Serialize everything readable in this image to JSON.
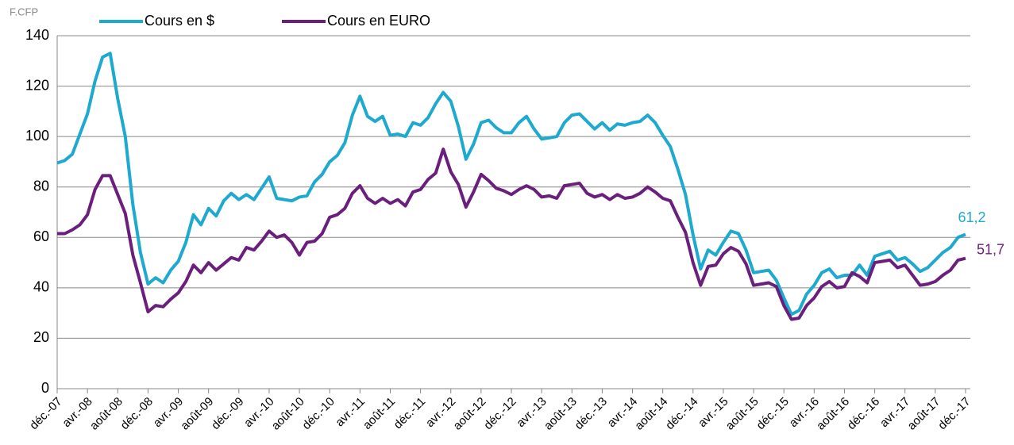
{
  "chart_data": {
    "type": "line",
    "unit_label": "F.CFP",
    "categories": [
      "déc.-07",
      null,
      null,
      null,
      "avr.-08",
      null,
      null,
      null,
      "août-08",
      null,
      null,
      null,
      "déc.-08",
      null,
      null,
      null,
      "avr.-09",
      null,
      null,
      null,
      "août-09",
      null,
      null,
      null,
      "déc.-09",
      null,
      null,
      null,
      "avr.-10",
      null,
      null,
      null,
      "août-10",
      null,
      null,
      null,
      "déc.-10",
      null,
      null,
      null,
      "avr.-11",
      null,
      null,
      null,
      "août-11",
      null,
      null,
      null,
      "déc.-11",
      null,
      null,
      null,
      "avr.-12",
      null,
      null,
      null,
      "août-12",
      null,
      null,
      null,
      "déc.-12",
      null,
      null,
      null,
      "avr.-13",
      null,
      null,
      null,
      "août-13",
      null,
      null,
      null,
      "déc.-13",
      null,
      null,
      null,
      "avr.-14",
      null,
      null,
      null,
      "août-14",
      null,
      null,
      null,
      "déc.-14",
      null,
      null,
      null,
      "avr.-15",
      null,
      null,
      null,
      "août-15",
      null,
      null,
      null,
      "déc.-15",
      null,
      null,
      null,
      "avr.-16",
      null,
      null,
      null,
      "août-16",
      null,
      null,
      null,
      "déc.-16",
      null,
      null,
      null,
      "avr.-17",
      null,
      null,
      null,
      "août-17",
      null,
      null,
      null,
      "déc.-17"
    ],
    "series": [
      {
        "name": "Cours en $",
        "color": "#1ea9cf",
        "values": [
          89.5,
          90.5,
          93,
          101,
          109,
          122,
          131.5,
          133,
          115,
          100,
          73,
          54,
          41.5,
          44,
          42,
          47,
          50.5,
          58,
          69,
          65,
          71.5,
          68.5,
          74.5,
          77.5,
          75,
          77,
          75,
          79.5,
          84,
          75.5,
          75,
          74.5,
          76,
          76.5,
          82,
          85,
          90,
          92.5,
          97.5,
          108.5,
          116,
          108,
          106,
          108,
          100.5,
          101,
          100,
          105.5,
          104.5,
          107.5,
          113,
          117.5,
          114,
          104,
          91,
          97,
          105.5,
          106.5,
          103.5,
          101.5,
          101.5,
          105.5,
          108,
          103,
          99,
          99.5,
          100,
          105.5,
          108.5,
          109,
          106,
          103,
          105.5,
          102.5,
          105,
          104.5,
          105.5,
          106,
          108.5,
          105.5,
          100.5,
          96,
          87,
          77,
          61,
          47.5,
          55,
          53,
          58,
          62.5,
          61.5,
          55,
          46,
          46.5,
          47,
          43,
          36,
          29.5,
          31,
          37.5,
          41,
          46,
          47.5,
          44,
          45,
          45,
          49,
          45,
          52.5,
          53.5,
          54.5,
          51,
          52,
          49.5,
          46.5,
          48,
          51,
          54,
          56,
          60,
          61.2
        ],
        "value_labels": [
          null,
          null,
          null,
          null,
          null,
          null,
          null,
          null,
          null,
          null,
          null,
          null,
          null,
          null,
          null,
          null,
          null,
          null,
          null,
          null,
          null,
          null,
          null,
          null,
          null,
          null,
          null,
          null,
          null,
          null,
          null,
          null,
          null,
          null,
          null,
          null,
          null,
          null,
          null,
          null,
          null,
          null,
          null,
          null,
          null,
          null,
          null,
          null,
          null,
          null,
          null,
          null,
          null,
          null,
          null,
          null,
          null,
          null,
          null,
          null,
          null,
          null,
          null,
          null,
          null,
          null,
          null,
          null,
          null,
          null,
          null,
          null,
          null,
          null,
          null,
          null,
          null,
          null,
          null,
          null,
          null,
          null,
          null,
          null,
          null,
          null,
          null,
          null,
          null,
          null,
          null,
          null,
          null,
          null,
          null,
          null,
          null,
          null,
          null,
          null,
          null,
          null,
          null,
          null,
          null,
          null,
          null,
          null,
          null,
          null,
          null,
          null,
          null,
          null,
          null,
          null,
          null,
          null,
          null,
          null,
          "61,2"
        ]
      },
      {
        "name": "Cours en EURO",
        "color": "#6b1f7c",
        "values": [
          61.5,
          61.5,
          63,
          65,
          69,
          79,
          84.5,
          84.5,
          77,
          69.5,
          53,
          42,
          30.5,
          33,
          32.5,
          35.5,
          38,
          42.5,
          49,
          46,
          50,
          47,
          49.5,
          52,
          51,
          56,
          55,
          58.5,
          62.5,
          60,
          61,
          58,
          53,
          58,
          58.5,
          61.5,
          68,
          69,
          71.5,
          77.5,
          80.5,
          75.5,
          73.5,
          75.5,
          73.5,
          75,
          72.5,
          78,
          79,
          83,
          85.5,
          95,
          86,
          81,
          72,
          78,
          85,
          82.5,
          79.5,
          78.5,
          77,
          79,
          80.5,
          79,
          76,
          76.5,
          75.5,
          80.5,
          81,
          81.5,
          77.5,
          76,
          77,
          75,
          77,
          75.5,
          76,
          77.5,
          80,
          78,
          75.5,
          74.5,
          68,
          62,
          50,
          41,
          48.5,
          49,
          53.5,
          56,
          54.5,
          49.5,
          41,
          41.5,
          42,
          40.5,
          33,
          27.5,
          28,
          33,
          36,
          40.5,
          42.5,
          40,
          40.5,
          46,
          44.5,
          42,
          50,
          50.5,
          51,
          48,
          49,
          45,
          41,
          41.5,
          42.5,
          45,
          47,
          51,
          51.7
        ],
        "value_labels": [
          null,
          null,
          null,
          null,
          null,
          null,
          null,
          null,
          null,
          null,
          null,
          null,
          null,
          null,
          null,
          null,
          null,
          null,
          null,
          null,
          null,
          null,
          null,
          null,
          null,
          null,
          null,
          null,
          null,
          null,
          null,
          null,
          null,
          null,
          null,
          null,
          null,
          null,
          null,
          null,
          null,
          null,
          null,
          null,
          null,
          null,
          null,
          null,
          null,
          null,
          null,
          null,
          null,
          null,
          null,
          null,
          null,
          null,
          null,
          null,
          null,
          null,
          null,
          null,
          null,
          null,
          null,
          null,
          null,
          null,
          null,
          null,
          null,
          null,
          null,
          null,
          null,
          null,
          null,
          null,
          null,
          null,
          null,
          null,
          null,
          null,
          null,
          null,
          null,
          null,
          null,
          null,
          null,
          null,
          null,
          null,
          null,
          null,
          null,
          null,
          null,
          null,
          null,
          null,
          null,
          null,
          null,
          null,
          null,
          null,
          null,
          null,
          null,
          null,
          null,
          null,
          null,
          null,
          null,
          null,
          "51,7"
        ]
      }
    ],
    "ylim": [
      0,
      140
    ],
    "yticks": [
      0,
      20,
      40,
      60,
      80,
      100,
      120,
      140
    ],
    "grid": true
  }
}
